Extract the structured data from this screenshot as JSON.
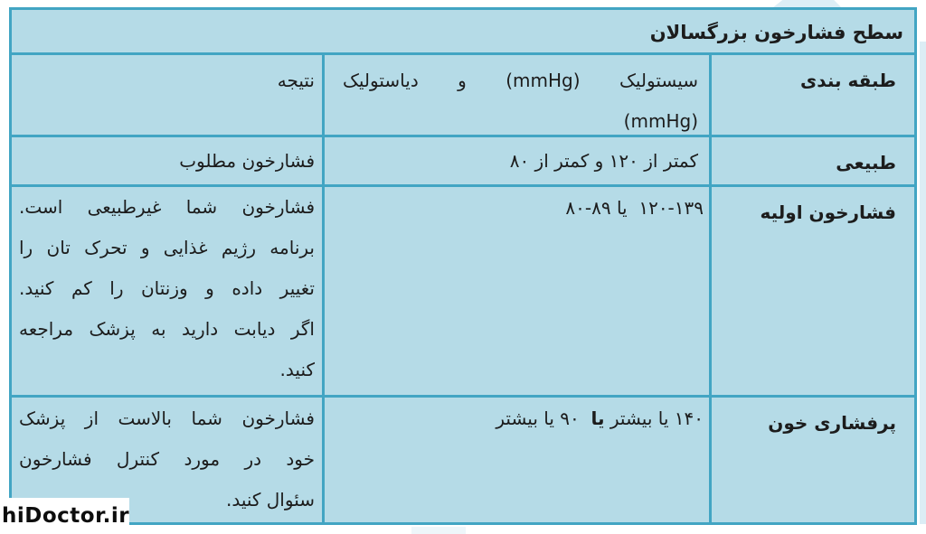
{
  "page": {
    "watermark": "hiDoctor.ir"
  },
  "colors": {
    "cell_background": "#b5dbe7",
    "border_teal": "#42a5c3",
    "text": "#1c1c1c",
    "pale_accent": "#ddeef6",
    "watermark_background": "#ffffff"
  },
  "table": {
    "title": "سطح فشارخون بزرگسالان",
    "headers": {
      "classification": "طبقه بندی",
      "range_line1": "سیستولیک (mmHg) و دیاستولیک",
      "range_line2": "(mmHg)",
      "result": "نتیجه"
    },
    "rows": [
      {
        "classification": "طبیعی",
        "range": "کمتر از ۱۲۰ و کمتر از ۸۰",
        "result": "فشارخون مطلوب"
      },
      {
        "classification": "فشارخون اولیه",
        "range": "۱۲۰‎-‎۱۳۹  یا ۸۰‎-‎۸۹",
        "result_lines": [
          "فشارخون شما غیرطبیعی است.",
          "برنامه رژیم غذایی و تحرک تان را",
          "تغییر داده و وزنتان را کم کنید.",
          "اگر دیابت دارید به پزشک مراجعه",
          "کنید."
        ]
      },
      {
        "classification": "پرفشاری خون",
        "range_pre": "۱۴۰ یا بیشتر ",
        "range_bold": "یا",
        "range_post": "  ۹۰ یا بیشتر",
        "result_lines": [
          "فشارخون شما بالاست از پزشک",
          "خود در مورد کنترل فشارخون",
          "سئوال کنید."
        ]
      }
    ]
  }
}
